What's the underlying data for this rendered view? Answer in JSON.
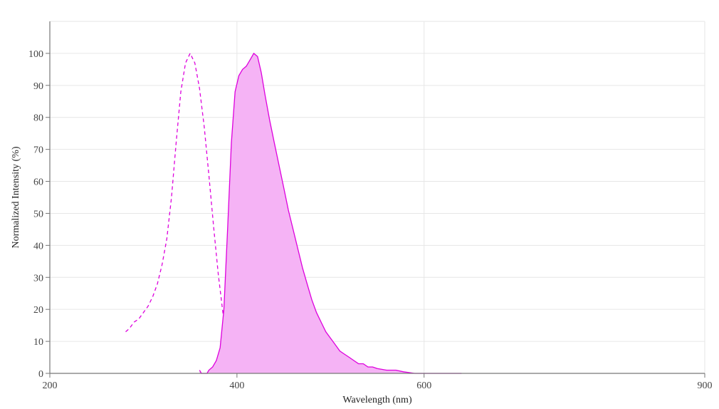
{
  "chart_data": {
    "type": "area",
    "xlabel": "Wavelength (nm)",
    "ylabel": "Normalized Intensity (%)",
    "xlim": [
      200,
      900
    ],
    "ylim": [
      0,
      110
    ],
    "x_ticks": [
      200,
      400,
      600,
      900
    ],
    "y_ticks": [
      0,
      10,
      20,
      30,
      40,
      50,
      60,
      70,
      80,
      90,
      100
    ],
    "grid": true,
    "colors": {
      "series": "#dd00dd",
      "fill": "#f5b3f5",
      "grid": "#e6e6e6",
      "axis": "#777777"
    },
    "series": [
      {
        "style": "dashed",
        "filled": false,
        "points": [
          [
            281,
            13
          ],
          [
            285,
            14
          ],
          [
            290,
            16
          ],
          [
            295,
            17
          ],
          [
            300,
            19
          ],
          [
            305,
            21
          ],
          [
            310,
            24
          ],
          [
            315,
            28
          ],
          [
            320,
            34
          ],
          [
            325,
            42
          ],
          [
            330,
            55
          ],
          [
            335,
            72
          ],
          [
            340,
            88
          ],
          [
            345,
            97
          ],
          [
            350,
            100
          ],
          [
            355,
            97
          ],
          [
            360,
            89
          ],
          [
            365,
            77
          ],
          [
            370,
            62
          ],
          [
            375,
            46
          ],
          [
            380,
            31
          ],
          [
            385,
            19
          ],
          [
            390,
            10
          ],
          [
            395,
            5
          ],
          [
            400,
            2
          ],
          [
            405,
            1
          ],
          [
            410,
            0.5
          ]
        ]
      },
      {
        "style": "solid",
        "filled": true,
        "points": [
          [
            360,
            1
          ],
          [
            362,
            0
          ],
          [
            368,
            0
          ],
          [
            370,
            1
          ],
          [
            374,
            2
          ],
          [
            378,
            4
          ],
          [
            382,
            8
          ],
          [
            386,
            20
          ],
          [
            390,
            45
          ],
          [
            394,
            72
          ],
          [
            398,
            88
          ],
          [
            402,
            93
          ],
          [
            406,
            95
          ],
          [
            410,
            96
          ],
          [
            414,
            98
          ],
          [
            418,
            100
          ],
          [
            422,
            99
          ],
          [
            426,
            94
          ],
          [
            430,
            87
          ],
          [
            435,
            79
          ],
          [
            440,
            72
          ],
          [
            445,
            65
          ],
          [
            450,
            58
          ],
          [
            455,
            51
          ],
          [
            460,
            45
          ],
          [
            465,
            39
          ],
          [
            470,
            33
          ],
          [
            475,
            28
          ],
          [
            480,
            23
          ],
          [
            485,
            19
          ],
          [
            490,
            16
          ],
          [
            495,
            13
          ],
          [
            500,
            11
          ],
          [
            505,
            9
          ],
          [
            510,
            7
          ],
          [
            515,
            6
          ],
          [
            520,
            5
          ],
          [
            525,
            4
          ],
          [
            530,
            3
          ],
          [
            535,
            3
          ],
          [
            540,
            2
          ],
          [
            545,
            2
          ],
          [
            550,
            1.5
          ],
          [
            560,
            1
          ],
          [
            570,
            1
          ],
          [
            578,
            0.5
          ],
          [
            590,
            0
          ],
          [
            600,
            0
          ],
          [
            640,
            0
          ]
        ]
      }
    ]
  }
}
